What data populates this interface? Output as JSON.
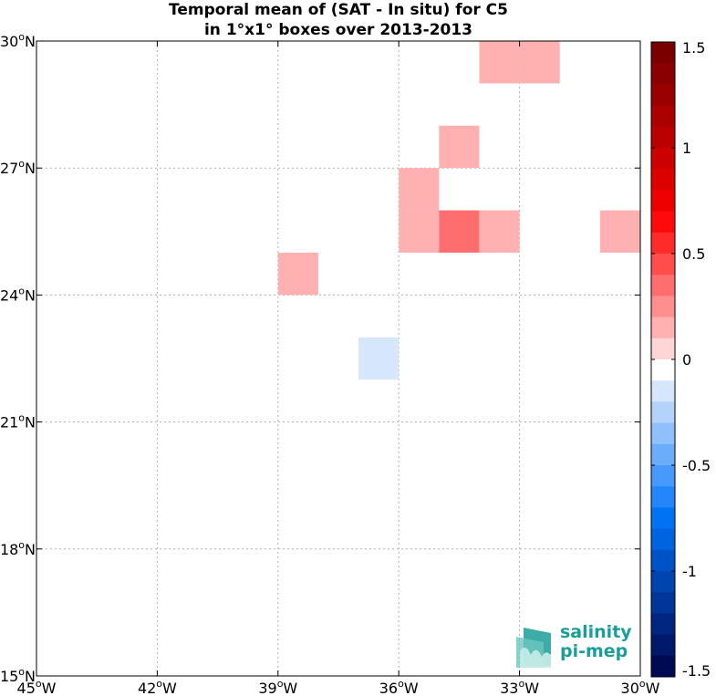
{
  "chart_data": {
    "type": "heatmap",
    "title": "Temporal mean of (SAT - In situ) for C5",
    "subtitle": "in 1°x1° boxes over 2013-2013",
    "lon_range": [
      -45,
      -30
    ],
    "lat_range": [
      15,
      30
    ],
    "x_ticks": [
      {
        "value": -45,
        "label": "45",
        "hemi": "W"
      },
      {
        "value": -42,
        "label": "42",
        "hemi": "W"
      },
      {
        "value": -39,
        "label": "39",
        "hemi": "W"
      },
      {
        "value": -36,
        "label": "36",
        "hemi": "W"
      },
      {
        "value": -33,
        "label": "33",
        "hemi": "W"
      },
      {
        "value": -30,
        "label": "30",
        "hemi": "W"
      }
    ],
    "y_ticks": [
      {
        "value": 15,
        "label": "15",
        "hemi": "N"
      },
      {
        "value": 18,
        "label": "18",
        "hemi": "N"
      },
      {
        "value": 21,
        "label": "21",
        "hemi": "N"
      },
      {
        "value": 24,
        "label": "24",
        "hemi": "N"
      },
      {
        "value": 27,
        "label": "27",
        "hemi": "N"
      },
      {
        "value": 30,
        "label": "30",
        "hemi": "N"
      }
    ],
    "grid": true,
    "cells": [
      {
        "lon": -34,
        "lat": 29,
        "value": 0.15
      },
      {
        "lon": -33,
        "lat": 29,
        "value": 0.15
      },
      {
        "lon": -35,
        "lat": 27,
        "value": 0.15
      },
      {
        "lon": -36,
        "lat": 26,
        "value": 0.15
      },
      {
        "lon": -36,
        "lat": 25,
        "value": 0.15
      },
      {
        "lon": -35,
        "lat": 25,
        "value": 0.3
      },
      {
        "lon": -34,
        "lat": 25,
        "value": 0.15
      },
      {
        "lon": -31,
        "lat": 25,
        "value": 0.15
      },
      {
        "lon": -39,
        "lat": 24,
        "value": 0.15
      },
      {
        "lon": -37,
        "lat": 22,
        "value": -0.15
      }
    ],
    "colorbar": {
      "range": [
        -1.5,
        1.5
      ],
      "levels": 30,
      "ticks": [
        {
          "value": 1.5,
          "label": "1.5"
        },
        {
          "value": 1,
          "label": "1"
        },
        {
          "value": 0.5,
          "label": "0.5"
        },
        {
          "value": 0,
          "label": "0"
        },
        {
          "value": -0.5,
          "label": "-0.5"
        },
        {
          "value": -1,
          "label": "-1"
        },
        {
          "value": -1.5,
          "label": "-1.5"
        }
      ],
      "colors_top_to_bottom": [
        "#7a0000",
        "#8a0000",
        "#9a0000",
        "#ab0000",
        "#bb0000",
        "#cc0000",
        "#dd0000",
        "#ee0000",
        "#ff0a0a",
        "#ff2b2b",
        "#ff4d4d",
        "#ff6e6e",
        "#ff8f8f",
        "#ffb0b0",
        "#ffd6d6",
        "#ffffff",
        "#d6e6fb",
        "#b3d3fb",
        "#8fc0fb",
        "#6badfb",
        "#479afb",
        "#2387fb",
        "#0073f5",
        "#0063df",
        "#0053c7",
        "#0044b0",
        "#003598",
        "#002681",
        "#001869",
        "#000a52"
      ]
    }
  },
  "logo": {
    "line1": "salinity",
    "line2": "pi-mep"
  }
}
